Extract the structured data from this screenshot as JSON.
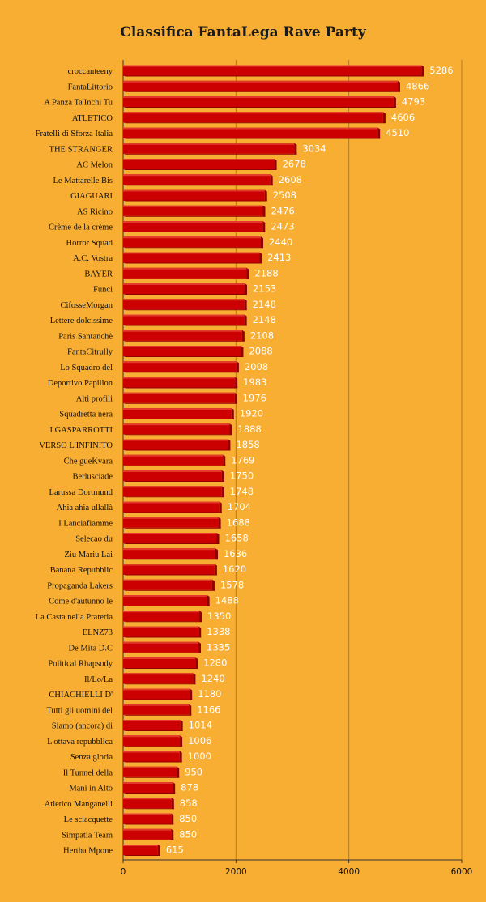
{
  "chart_data": {
    "type": "bar",
    "orientation": "horizontal",
    "title": "Classifica FantaLega Rave Party",
    "xlabel": "",
    "ylabel": "",
    "xlim": [
      0,
      6000
    ],
    "xticks": [
      0,
      2000,
      4000,
      6000
    ],
    "grid": true,
    "legend": "none",
    "categories": [
      "croccanteeny",
      "FantaLittorio",
      "A Panza Ta'Inchi Tu",
      "ATLETICO",
      "Fratelli di Sforza Italia",
      "THE STRANGER",
      "AC Melon",
      "Le Mattarelle Bis",
      "GIAGUARI",
      "AS Ricino",
      "Crème de la crème",
      "Horror Squad",
      "A.C. Vostra",
      "BAYER",
      "Funci",
      "CifosseMorgan",
      "Lettere dolcissime",
      "Paris Santanchè",
      "FantaCitrully",
      "Lo Squadro del",
      "Deportivo Papillon",
      "Alti profili",
      "Squadretta nera",
      "I GASPARROTTI",
      "VERSO L'INFINITO",
      "Che gueKvara",
      "Berlusciade",
      "Larussa Dortmund",
      "Ahia ahia ullallà",
      "I Lanciafiamme",
      "Selecao du",
      "Ziu Mariu Lai",
      "Banana Repubblic",
      "Propaganda Lakers",
      "Come d'autunno le",
      "La Casta nella Prateria",
      "ELNZ73",
      "De Mita D.C",
      "Political Rhapsody",
      "Il/Lo/La",
      "CHIACHIELLI D'",
      "Tutti gli uomini del",
      "Siamo (ancora) di",
      "L'ottava repubblica",
      "Senza gloria",
      "Il Tunnel della",
      "Mani in Alto",
      "Atletico Manganelli",
      "Le sciacquette",
      "Simpatia Team",
      "Hertha Mpone"
    ],
    "values": [
      5286,
      4866,
      4793,
      4606,
      4510,
      3034,
      2678,
      2608,
      2508,
      2476,
      2473,
      2440,
      2413,
      2188,
      2153,
      2148,
      2148,
      2108,
      2088,
      2008,
      1983,
      1976,
      1920,
      1888,
      1858,
      1769,
      1750,
      1748,
      1704,
      1688,
      1658,
      1636,
      1620,
      1578,
      1488,
      1350,
      1338,
      1335,
      1280,
      1240,
      1180,
      1166,
      1014,
      1006,
      1000,
      950,
      878,
      858,
      850,
      850,
      615
    ],
    "colors": {
      "background": "#f8ae33",
      "bar": "#cc0000",
      "bar_side": "#8f0000",
      "bar_highlight": "#e23a2a",
      "value_label": "#ffffff",
      "grid": "#b07a22",
      "axis": "#333333"
    }
  }
}
